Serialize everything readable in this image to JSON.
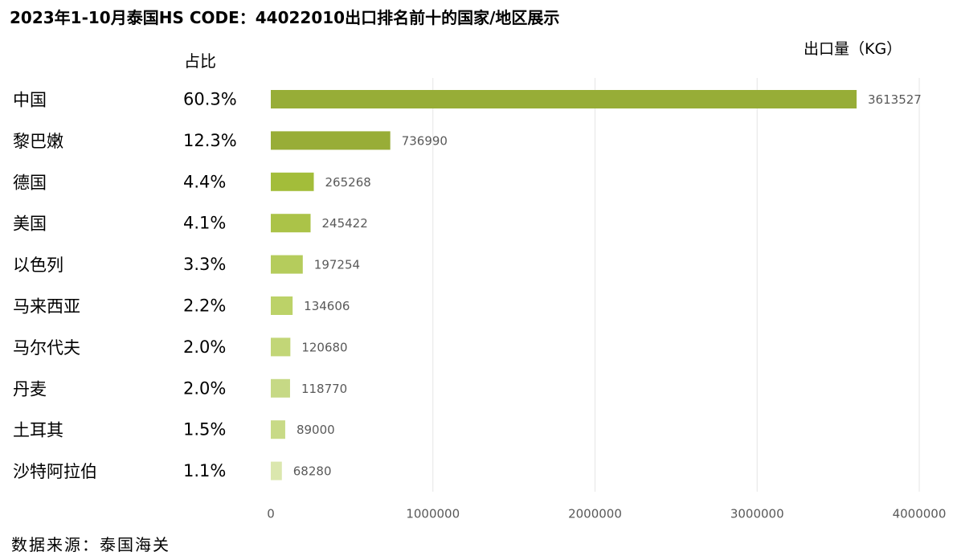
{
  "page": {
    "title": "2023年1-10月泰国HS CODE：44022010出口排名前十的国家/地区展示",
    "unit_label": "出口量（KG）",
    "share_header": "占比",
    "source": "数据来源：泰国海关"
  },
  "chart_data": {
    "type": "bar",
    "orientation": "horizontal",
    "title": "2023年1-10月泰国HS CODE：44022010出口排名前十的国家/地区展示",
    "xlabel": "出口量（KG）",
    "ylabel": "",
    "categories": [
      "中国",
      "黎巴嫩",
      "德国",
      "美国",
      "以色列",
      "马来西亚",
      "马尔代夫",
      "丹麦",
      "土耳其",
      "沙特阿拉伯"
    ],
    "values": [
      3613527,
      736990,
      265268,
      245422,
      197254,
      134606,
      120680,
      118770,
      89000,
      68280
    ],
    "value_labels": [
      "3613527",
      "736990",
      "265268",
      "245422",
      "197254",
      "134606",
      "120680",
      "118770",
      "89000",
      "68280"
    ],
    "shares": [
      "60.3%",
      "12.3%",
      "4.4%",
      "4.1%",
      "3.3%",
      "2.2%",
      "2.0%",
      "2.0%",
      "1.5%",
      "1.1%"
    ],
    "xlim": [
      0,
      4000000
    ],
    "x_ticks": [
      0,
      1000000,
      2000000,
      3000000,
      4000000
    ],
    "x_tick_labels": [
      "0",
      "1000000",
      "2000000",
      "3000000",
      "4000000"
    ],
    "grid": true,
    "legend": "none",
    "bar_colors": [
      "#97ad37",
      "#98ad37",
      "#a3bd3a",
      "#abc348",
      "#b5cc5c",
      "#bcd268",
      "#c2d677",
      "#c6d985",
      "#c8da86",
      "#dbe7ae"
    ],
    "grid_color": "#e6e6e6"
  }
}
